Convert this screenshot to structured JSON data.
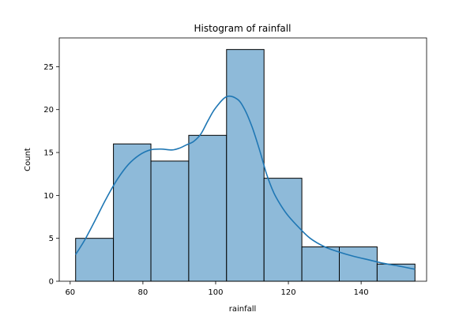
{
  "chart_data": {
    "type": "bar",
    "title": "Histogram of rainfall",
    "xlabel": "rainfall",
    "ylabel": "Count",
    "xlim": [
      57,
      158
    ],
    "ylim": [
      0,
      28.35
    ],
    "bins": [
      {
        "x0": 61.5,
        "x1": 71.9,
        "count": 5
      },
      {
        "x0": 71.9,
        "x1": 82.2,
        "count": 16
      },
      {
        "x0": 82.2,
        "x1": 92.6,
        "count": 14
      },
      {
        "x0": 92.6,
        "x1": 103.0,
        "count": 17
      },
      {
        "x0": 103.0,
        "x1": 113.3,
        "count": 27
      },
      {
        "x0": 113.3,
        "x1": 123.7,
        "count": 12
      },
      {
        "x0": 123.7,
        "x1": 134.0,
        "count": 4
      },
      {
        "x0": 134.0,
        "x1": 144.4,
        "count": 4
      },
      {
        "x0": 144.4,
        "x1": 154.8,
        "count": 2
      }
    ],
    "kde": {
      "x": [
        61.5,
        64,
        67,
        70,
        73,
        76,
        79,
        82,
        85,
        88,
        90,
        92,
        94,
        96,
        98,
        100,
        103,
        106,
        108,
        110,
        112,
        114,
        116,
        118,
        120,
        123,
        126,
        130,
        134,
        138,
        142,
        146,
        150,
        154.8
      ],
      "y": [
        3.1,
        4.8,
        7.2,
        9.7,
        11.9,
        13.6,
        14.7,
        15.3,
        15.4,
        15.3,
        15.5,
        15.9,
        16.3,
        17.2,
        18.8,
        20.2,
        21.5,
        21.2,
        20.0,
        18.0,
        15.4,
        12.5,
        10.3,
        8.8,
        7.6,
        6.2,
        5.0,
        4.0,
        3.4,
        2.9,
        2.5,
        2.1,
        1.8,
        1.4
      ]
    },
    "xticks": [
      60,
      80,
      100,
      120,
      140
    ],
    "yticks": [
      0,
      5,
      10,
      15,
      20,
      25
    ],
    "grid": false,
    "colors": {
      "bar_fill": "#8ebad9",
      "bar_edge": "#000000",
      "kde_line": "#1f77b4"
    }
  }
}
